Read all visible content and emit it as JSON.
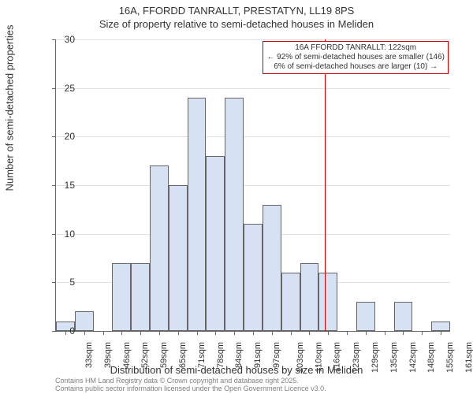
{
  "title_line1": "16A, FFORDD TANRALLT, PRESTATYN, LL19 8PS",
  "title_line2": "Size of property relative to semi-detached houses in Meliden",
  "y_axis_label": "Number of semi-detached properties",
  "x_axis_label": "Distribution of semi-detached houses by size in Meliden",
  "footer_line1": "Contains HM Land Registry data © Crown copyright and database right 2025.",
  "footer_line2": "Contains public sector information licensed under the Open Government Licence v3.0.",
  "annotation": {
    "line1": "16A FFORDD TANRALLT: 122sqm",
    "line2": "← 92% of semi-detached houses are smaller (146)",
    "line3": "6% of semi-detached houses are larger (10) →"
  },
  "chart": {
    "type": "histogram",
    "ylim": [
      0,
      30
    ],
    "ytick_step": 5,
    "bar_fill": "#d6e2f3",
    "bar_border": "#666666",
    "grid_color": "#e0e0e0",
    "reference_line_color": "#cc0000",
    "reference_x": 122,
    "x_min": 30,
    "x_max": 165,
    "x_labels": [
      "33sqm",
      "39sqm",
      "46sqm",
      "52sqm",
      "59sqm",
      "65sqm",
      "71sqm",
      "78sqm",
      "84sqm",
      "91sqm",
      "97sqm",
      "103sqm",
      "110sqm",
      "116sqm",
      "123sqm",
      "129sqm",
      "135sqm",
      "142sqm",
      "148sqm",
      "155sqm",
      "161sqm"
    ],
    "bars": [
      {
        "label": "33sqm",
        "value": 1
      },
      {
        "label": "39sqm",
        "value": 2
      },
      {
        "label": "46sqm",
        "value": 0
      },
      {
        "label": "52sqm",
        "value": 7
      },
      {
        "label": "59sqm",
        "value": 7
      },
      {
        "label": "65sqm",
        "value": 17
      },
      {
        "label": "71sqm",
        "value": 15
      },
      {
        "label": "78sqm",
        "value": 24
      },
      {
        "label": "84sqm",
        "value": 18
      },
      {
        "label": "91sqm",
        "value": 24
      },
      {
        "label": "97sqm",
        "value": 11
      },
      {
        "label": "103sqm",
        "value": 13
      },
      {
        "label": "110sqm",
        "value": 6
      },
      {
        "label": "116sqm",
        "value": 7
      },
      {
        "label": "123sqm",
        "value": 6
      },
      {
        "label": "129sqm",
        "value": 0
      },
      {
        "label": "135sqm",
        "value": 3
      },
      {
        "label": "142sqm",
        "value": 0
      },
      {
        "label": "148sqm",
        "value": 3
      },
      {
        "label": "155sqm",
        "value": 0
      },
      {
        "label": "161sqm",
        "value": 1
      }
    ]
  }
}
